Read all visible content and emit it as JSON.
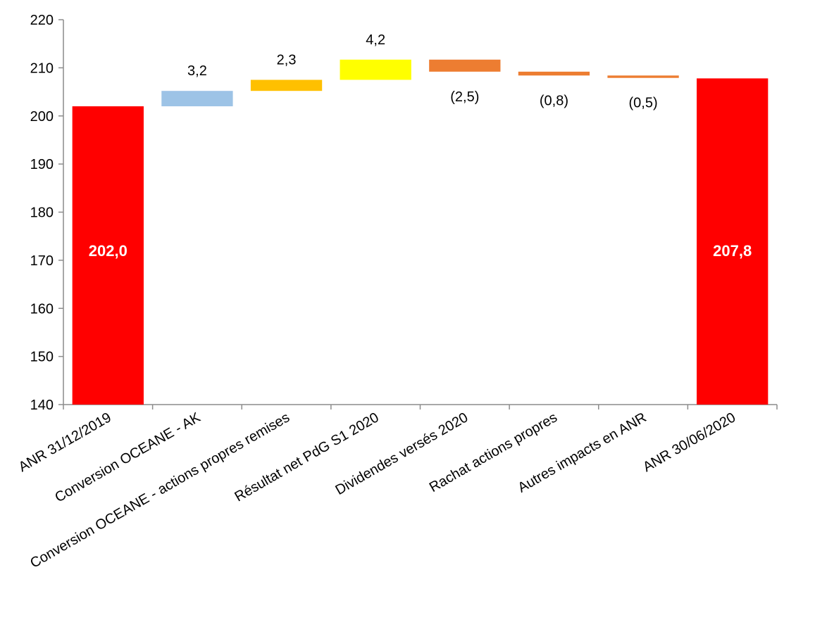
{
  "chart_data": {
    "type": "waterfall",
    "title": "",
    "xlabel": "",
    "ylabel": "",
    "ylim": [
      140,
      220
    ],
    "yticks": [
      140,
      150,
      160,
      170,
      180,
      190,
      200,
      210,
      220
    ],
    "grid": false,
    "legend": "none",
    "categories": [
      "ANR 31/12/2019",
      "Conversion OCEANE - AK",
      "Conversion OCEANE - actions propres remises",
      "Résultat net PdG S1 2020",
      "Dividendes versés 2020",
      "Rachat actions propres",
      "Autres impacts en ANR",
      "ANR 30/06/2020"
    ],
    "bars": [
      {
        "kind": "total",
        "start": 140,
        "end": 202.0,
        "label": "202,0",
        "color": "#ff0000"
      },
      {
        "kind": "delta",
        "start": 202.0,
        "end": 205.2,
        "label": "3,2",
        "color": "#9dc3e6"
      },
      {
        "kind": "delta",
        "start": 205.2,
        "end": 207.5,
        "label": "2,3",
        "color": "#ffc000"
      },
      {
        "kind": "delta",
        "start": 207.5,
        "end": 211.7,
        "label": "4,2",
        "color": "#ffff00"
      },
      {
        "kind": "delta",
        "start": 211.7,
        "end": 209.2,
        "label": "(2,5)",
        "color": "#ed7d31"
      },
      {
        "kind": "delta",
        "start": 209.2,
        "end": 208.4,
        "label": "(0,8)",
        "color": "#ed7d31"
      },
      {
        "kind": "delta",
        "start": 208.4,
        "end": 207.9,
        "label": "(0,5)",
        "color": "#ed7d31"
      },
      {
        "kind": "total",
        "start": 140,
        "end": 207.8,
        "label": "207,8",
        "color": "#ff0000"
      }
    ]
  }
}
